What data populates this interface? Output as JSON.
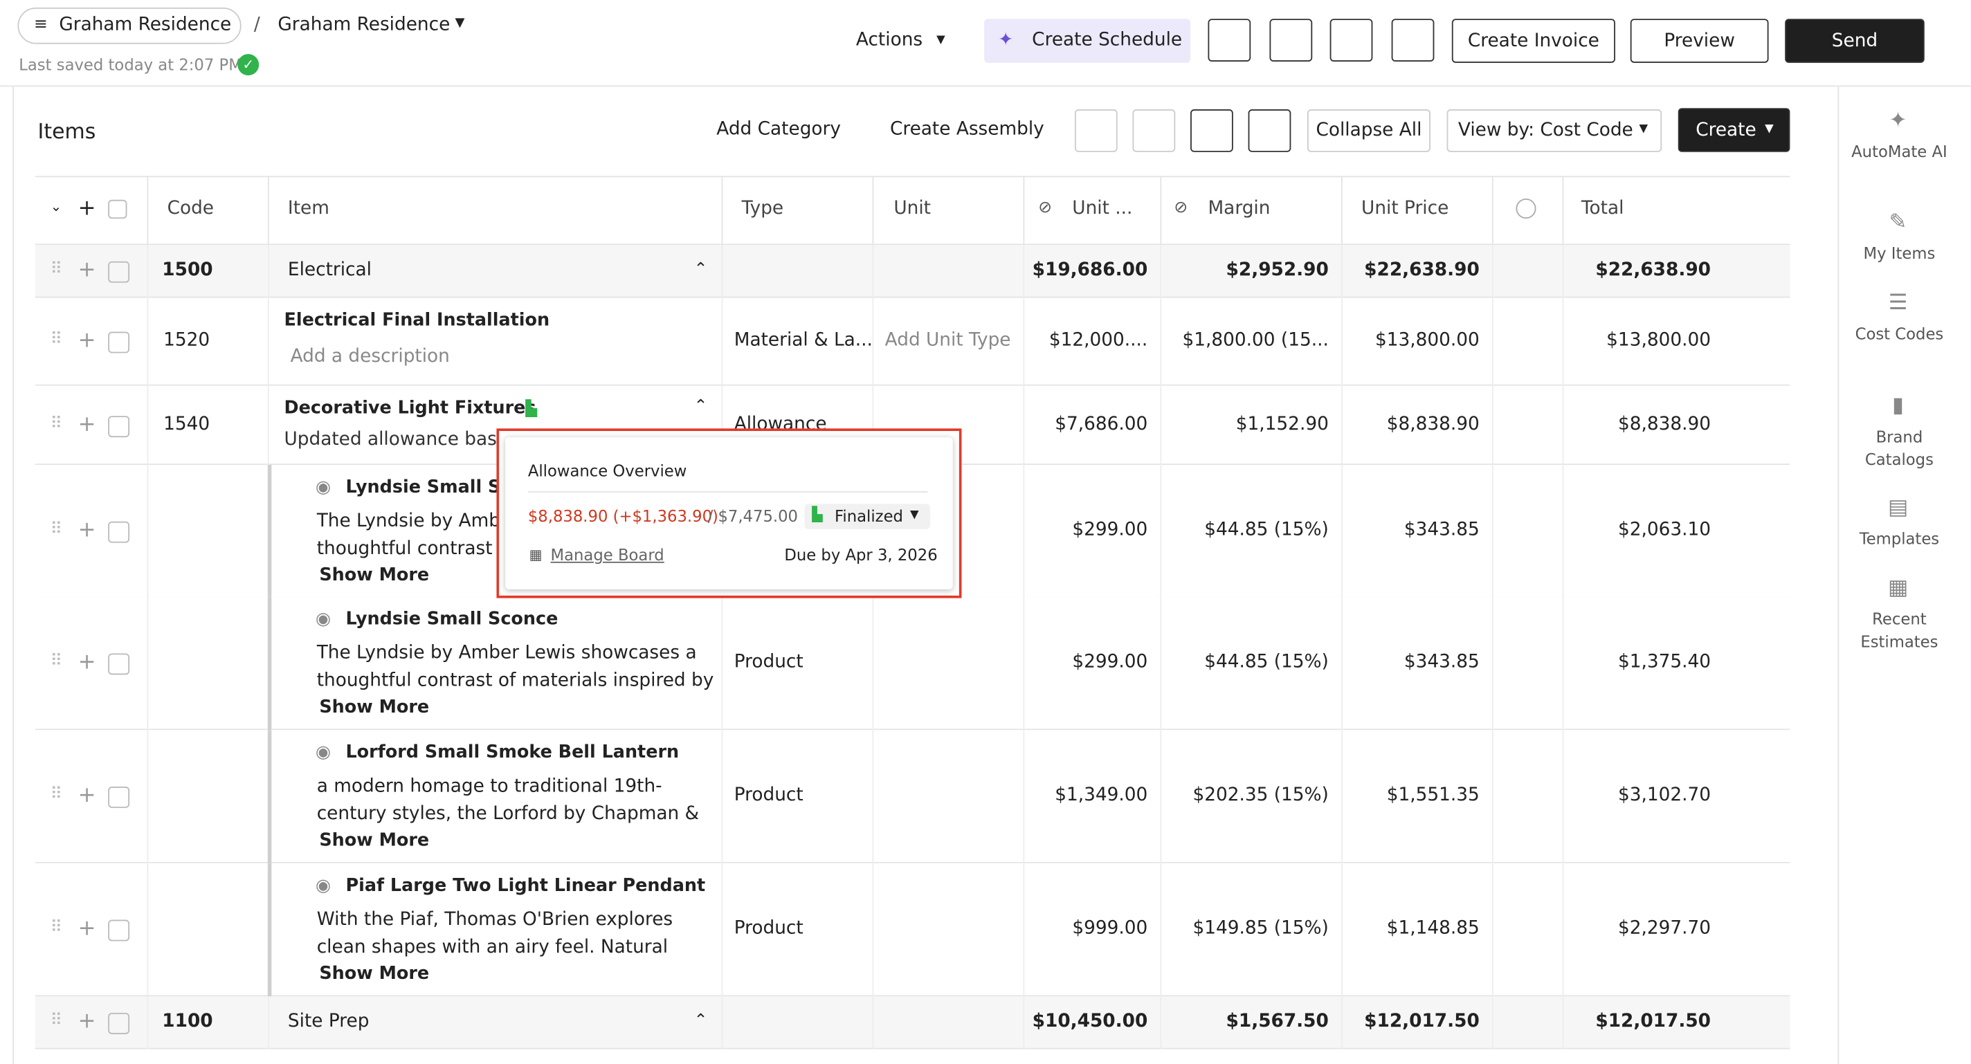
{
  "header": {
    "breadcrumb_root": "Graham Residence",
    "breadcrumb_current": "Graham Residence",
    "saved": "Last saved today at 2:07 PM",
    "buttons": [
      "Actions",
      "Create Schedule",
      "Create Invoice",
      "Preview",
      "Send"
    ]
  },
  "toolbar": {
    "title": "Items",
    "buttons": [
      "Add Category",
      "Create Assembly",
      "Collapse All",
      "View by: Cost Code",
      "Create"
    ]
  },
  "table": {
    "columns": [
      "Code",
      "Item",
      "Type",
      "Unit",
      "Unit ...",
      "Margin",
      "Unit Price",
      "Total"
    ],
    "rows": [
      {
        "kind": "group",
        "code": "1500",
        "item": "Electrical",
        "unit_cost": "$19,686.00",
        "margin": "$2,952.90",
        "unit_price": "$22,638.90",
        "total": "$22,638.90"
      },
      {
        "kind": "item",
        "code": "1520",
        "item": "Electrical Final Installation",
        "description": "Add a description",
        "type": "Material & La...",
        "unit": "Add Unit Type",
        "unit_cost": "$12,000....",
        "margin": "$1,800.00 (15...",
        "unit_price": "$13,800.00",
        "total": "$13,800.00"
      },
      {
        "kind": "item",
        "code": "1540",
        "item": "Decorative Light Fixtures",
        "description": "Updated allowance based",
        "type": "Allowance",
        "unit_cost": "$7,686.00",
        "margin": "$1,152.90",
        "unit_price": "$8,838.90",
        "total": "$8,838.90"
      },
      {
        "kind": "child",
        "item": "Lyndsie Small Sconce",
        "description": "The Lyndsie by Amber Lewis showcases a thoughtful contrast of materials inspired by ...",
        "show_more": "Show More",
        "unit_cost": "$299.00",
        "margin": "$44.85 (15%)",
        "unit_price": "$343.85",
        "total": "$2,063.10"
      },
      {
        "kind": "child",
        "item": "Lyndsie Small Sconce",
        "description": "The Lyndsie by Amber Lewis showcases a thoughtful contrast of materials inspired by ...",
        "show_more": "Show More",
        "type": "Product",
        "unit_cost": "$299.00",
        "margin": "$44.85 (15%)",
        "unit_price": "$343.85",
        "total": "$1,375.40"
      },
      {
        "kind": "child",
        "item": "Lorford Small Smoke Bell Lantern",
        "description": "a modern homage to traditional 19th-century styles, the Lorford by Chapman & Myers ...",
        "show_more": "Show More",
        "type": "Product",
        "unit_cost": "$1,349.00",
        "margin": "$202.35 (15%)",
        "unit_price": "$1,551.35",
        "total": "$3,102.70"
      },
      {
        "kind": "child",
        "item": "Piaf Large Two Light Linear Pendant",
        "description": "With the Piaf, Thomas O'Brien explores clean shapes with an airy feel. Natural steel bars ...",
        "show_more": "Show More",
        "type": "Product",
        "unit_cost": "$999.00",
        "margin": "$149.85 (15%)",
        "unit_price": "$1,148.85",
        "total": "$2,297.70"
      },
      {
        "kind": "group",
        "code": "1100",
        "item": "Site Prep",
        "unit_cost": "$10,450.00",
        "margin": "$1,567.50",
        "unit_price": "$12,017.50",
        "total": "$12,017.50"
      }
    ]
  },
  "popover": {
    "title": "Allowance Overview",
    "amount": "$8,838.90 (+$1,363.90)",
    "budget": "/ $7,475.00",
    "status": "Finalized",
    "link": "Manage Board",
    "due": "Due by Apr 3, 2026"
  },
  "sidebar": [
    "AutoMate AI",
    "My Items",
    "Cost Codes",
    "Brand Catalogs",
    "Templates",
    "Recent Estimates"
  ]
}
